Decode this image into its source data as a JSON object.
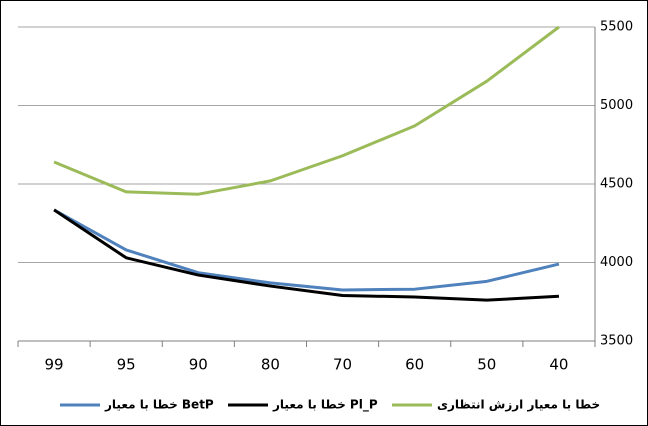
{
  "chart_data": {
    "type": "line",
    "categories": [
      "99",
      "95",
      "90",
      "80",
      "70",
      "60",
      "50",
      "40"
    ],
    "series": [
      {
        "name": "خطا با معیار BetP",
        "color": "#4f81bd",
        "values": [
          4335,
          4080,
          3935,
          3870,
          3825,
          3830,
          3880,
          3990
        ]
      },
      {
        "name": "خطا با معیار Pl_P",
        "color": "#000000",
        "values": [
          4335,
          4030,
          3920,
          3850,
          3790,
          3780,
          3760,
          3785
        ]
      },
      {
        "name": "خطا با معیار ارزش انتظاری",
        "color": "#9bbb59",
        "values": [
          4640,
          4450,
          4435,
          4520,
          4680,
          4870,
          5155,
          5500
        ]
      }
    ],
    "ylim": [
      3500,
      5500
    ],
    "yticks": [
      3500,
      4000,
      4500,
      5000,
      5500
    ],
    "grid": true
  }
}
